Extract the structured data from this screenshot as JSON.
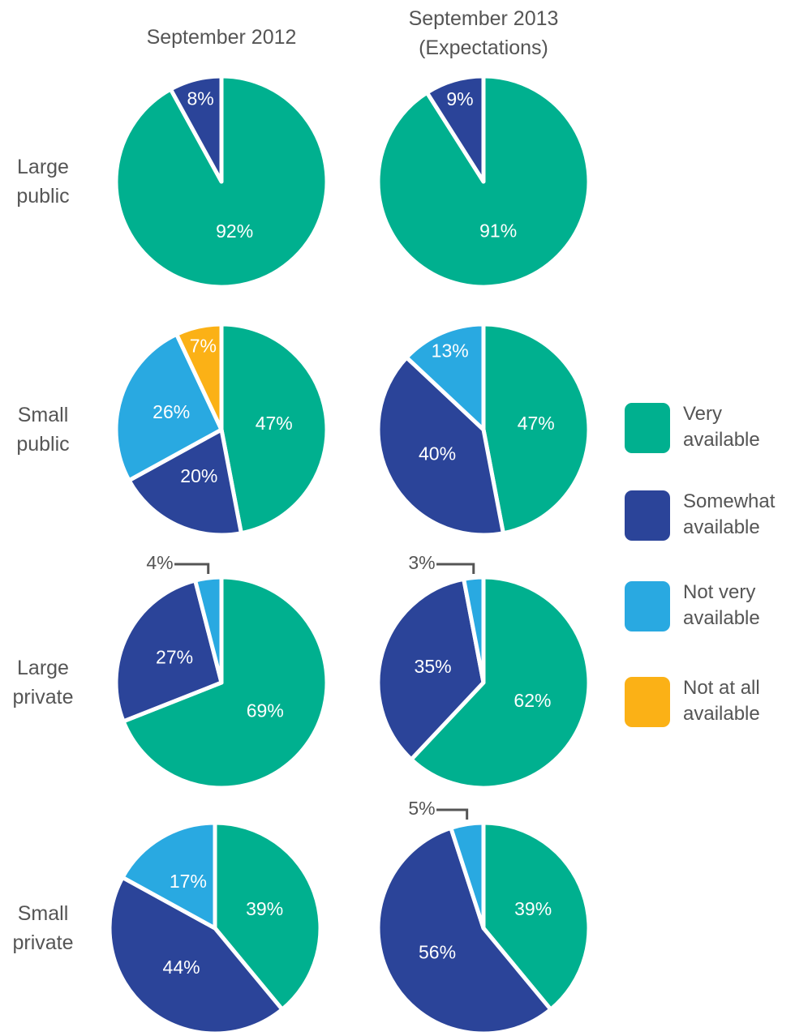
{
  "column_titles": [
    "September 2012",
    "September 2013 (Expectations)"
  ],
  "row_labels": [
    "Large public",
    "Small public",
    "Large private",
    "Small private"
  ],
  "legend": [
    {
      "name": "Very available",
      "color": "#00b08f"
    },
    {
      "name": "Somewhat available",
      "color": "#2b4499"
    },
    {
      "name": "Not very available",
      "color": "#29a9e1"
    },
    {
      "name": "Not at all available",
      "color": "#fbb116"
    }
  ],
  "chart_data": [
    {
      "type": "pie",
      "values": [
        92,
        8,
        null,
        null
      ],
      "value_labels": [
        "92%",
        "8%",
        null,
        null
      ]
    },
    {
      "type": "pie",
      "values": [
        91,
        9,
        null,
        null
      ],
      "value_labels": [
        "91%",
        "9%",
        null,
        null
      ]
    },
    {
      "type": "pie",
      "values": [
        47,
        20,
        26,
        7
      ],
      "value_labels": [
        "47%",
        "20%",
        "26%",
        "7%"
      ]
    },
    {
      "type": "pie",
      "values": [
        47,
        40,
        13,
        null
      ],
      "value_labels": [
        "47%",
        "40%",
        "13%",
        null
      ]
    },
    {
      "type": "pie",
      "values": [
        69,
        27,
        4,
        null
      ],
      "value_labels": [
        "69%",
        "27%",
        "4%",
        null
      ]
    },
    {
      "type": "pie",
      "values": [
        62,
        35,
        3,
        null
      ],
      "value_labels": [
        "62%",
        "35%",
        "3%",
        null
      ]
    },
    {
      "type": "pie",
      "values": [
        39,
        44,
        17,
        null
      ],
      "value_labels": [
        "39%",
        "44%",
        "17%",
        null
      ]
    },
    {
      "type": "pie",
      "values": [
        39,
        56,
        5,
        null
      ],
      "value_labels": [
        "39%",
        "56%",
        "5%",
        null
      ]
    }
  ]
}
